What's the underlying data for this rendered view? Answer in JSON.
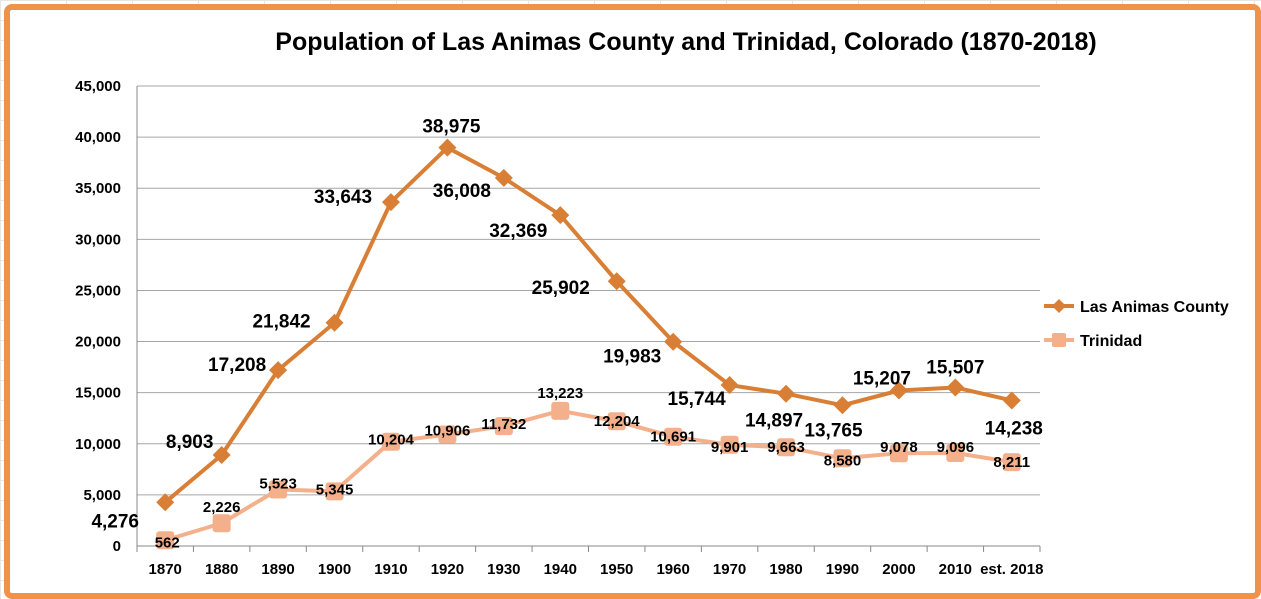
{
  "chart_data": {
    "type": "line",
    "title": "Population of Las Animas County and Trinidad, Colorado (1870-2018)",
    "xlabel": "",
    "ylabel": "",
    "categories": [
      "1870",
      "1880",
      "1890",
      "1900",
      "1910",
      "1920",
      "1930",
      "1940",
      "1950",
      "1960",
      "1970",
      "1980",
      "1990",
      "2000",
      "2010",
      "est. 2018"
    ],
    "ylim": [
      0,
      45000
    ],
    "yticks": [
      0,
      5000,
      10000,
      15000,
      20000,
      25000,
      30000,
      35000,
      40000,
      45000
    ],
    "ytick_labels": [
      "0",
      "5,000",
      "10,000",
      "15,000",
      "20,000",
      "25,000",
      "30,000",
      "35,000",
      "40,000",
      "45,000"
    ],
    "grid": true,
    "legend_position": "right",
    "series": [
      {
        "name": "Las Animas County",
        "color": "#d97f35",
        "marker": "diamond",
        "values": [
          4276,
          8903,
          17208,
          21842,
          33643,
          38975,
          36008,
          32369,
          25902,
          19983,
          15744,
          14897,
          13765,
          15207,
          15507,
          14238
        ],
        "labels": [
          "4,276",
          "8,903",
          "17,208",
          "21,842",
          "33,643",
          "38,975",
          "36,008",
          "32,369",
          "25,902",
          "19,983",
          "15,744",
          "14,897",
          "13,765",
          "15,207",
          "15,507",
          "14,238"
        ]
      },
      {
        "name": "Trinidad",
        "color": "#f4b08a",
        "marker": "square",
        "values": [
          562,
          2226,
          5523,
          5345,
          10204,
          10906,
          11732,
          13223,
          12204,
          10691,
          9901,
          9663,
          8580,
          9078,
          9096,
          8211
        ],
        "labels": [
          "562",
          "2,226",
          "5,523",
          "5,345",
          "10,204",
          "10,906",
          "11,732",
          "13,223",
          "12,204",
          "10,691",
          "9,901",
          "9,663",
          "8,580",
          "9,078",
          "9,096",
          "8,211"
        ]
      }
    ]
  },
  "frame_color": "#f0924a"
}
